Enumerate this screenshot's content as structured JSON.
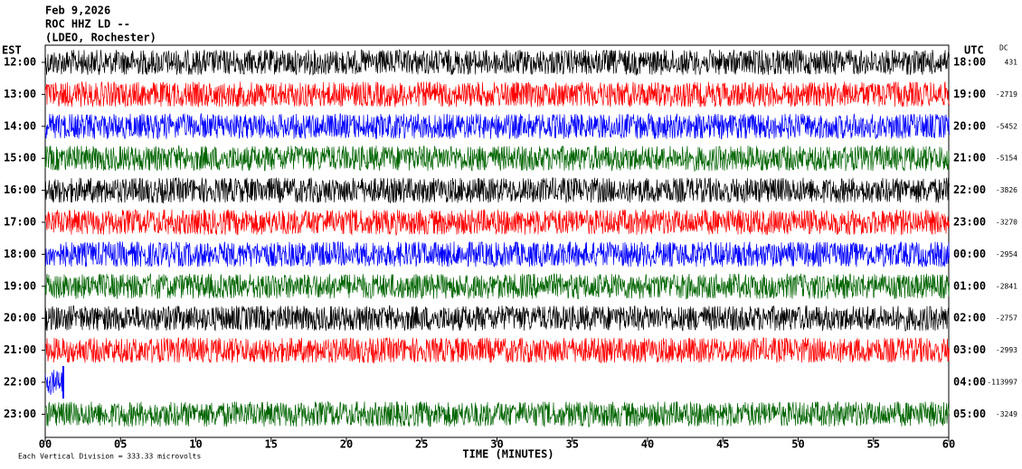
{
  "chart_data": {
    "type": "helicorder",
    "title_lines": [
      "Feb 9,2026",
      "ROC HHZ LD --",
      "(LDEO, Rochester)"
    ],
    "left_axis_title": "EST",
    "right_axis_title": "UTC",
    "dc_title": "DC",
    "xlabel": "TIME (MINUTES)",
    "scale_note": "Each Vertical Division =  333.33 microvolts",
    "xlim": [
      0,
      60
    ],
    "xticks": [
      {
        "value": 0,
        "label": "00"
      },
      {
        "value": 5,
        "label": "05"
      },
      10,
      15,
      20,
      25,
      30,
      35,
      40,
      45,
      50,
      55,
      60
    ],
    "rows": [
      {
        "est": "12:00",
        "utc": "18:00",
        "dc": 431,
        "color": "#000000"
      },
      {
        "est": "13:00",
        "utc": "19:00",
        "dc": -2719,
        "color": "#ff0000"
      },
      {
        "est": "14:00",
        "utc": "20:00",
        "dc": -5452,
        "color": "#0000ff"
      },
      {
        "est": "15:00",
        "utc": "21:00",
        "dc": -5154,
        "color": "#006400"
      },
      {
        "est": "16:00",
        "utc": "22:00",
        "dc": -3826,
        "color": "#000000"
      },
      {
        "est": "17:00",
        "utc": "23:00",
        "dc": -3270,
        "color": "#ff0000"
      },
      {
        "est": "18:00",
        "utc": "00:00",
        "dc": -2954,
        "color": "#0000ff"
      },
      {
        "est": "19:00",
        "utc": "01:00",
        "dc": -2841,
        "color": "#006400"
      },
      {
        "est": "20:00",
        "utc": "02:00",
        "dc": -2757,
        "color": "#000000"
      },
      {
        "est": "21:00",
        "utc": "03:00",
        "dc": -2993,
        "color": "#ff0000"
      },
      {
        "est": "22:00",
        "utc": "04:00",
        "dc": -113997,
        "color": "#0000ff",
        "trace_end": 1.2
      },
      {
        "est": "23:00",
        "utc": "05:00",
        "dc": -3249,
        "color": "#006400"
      }
    ]
  }
}
